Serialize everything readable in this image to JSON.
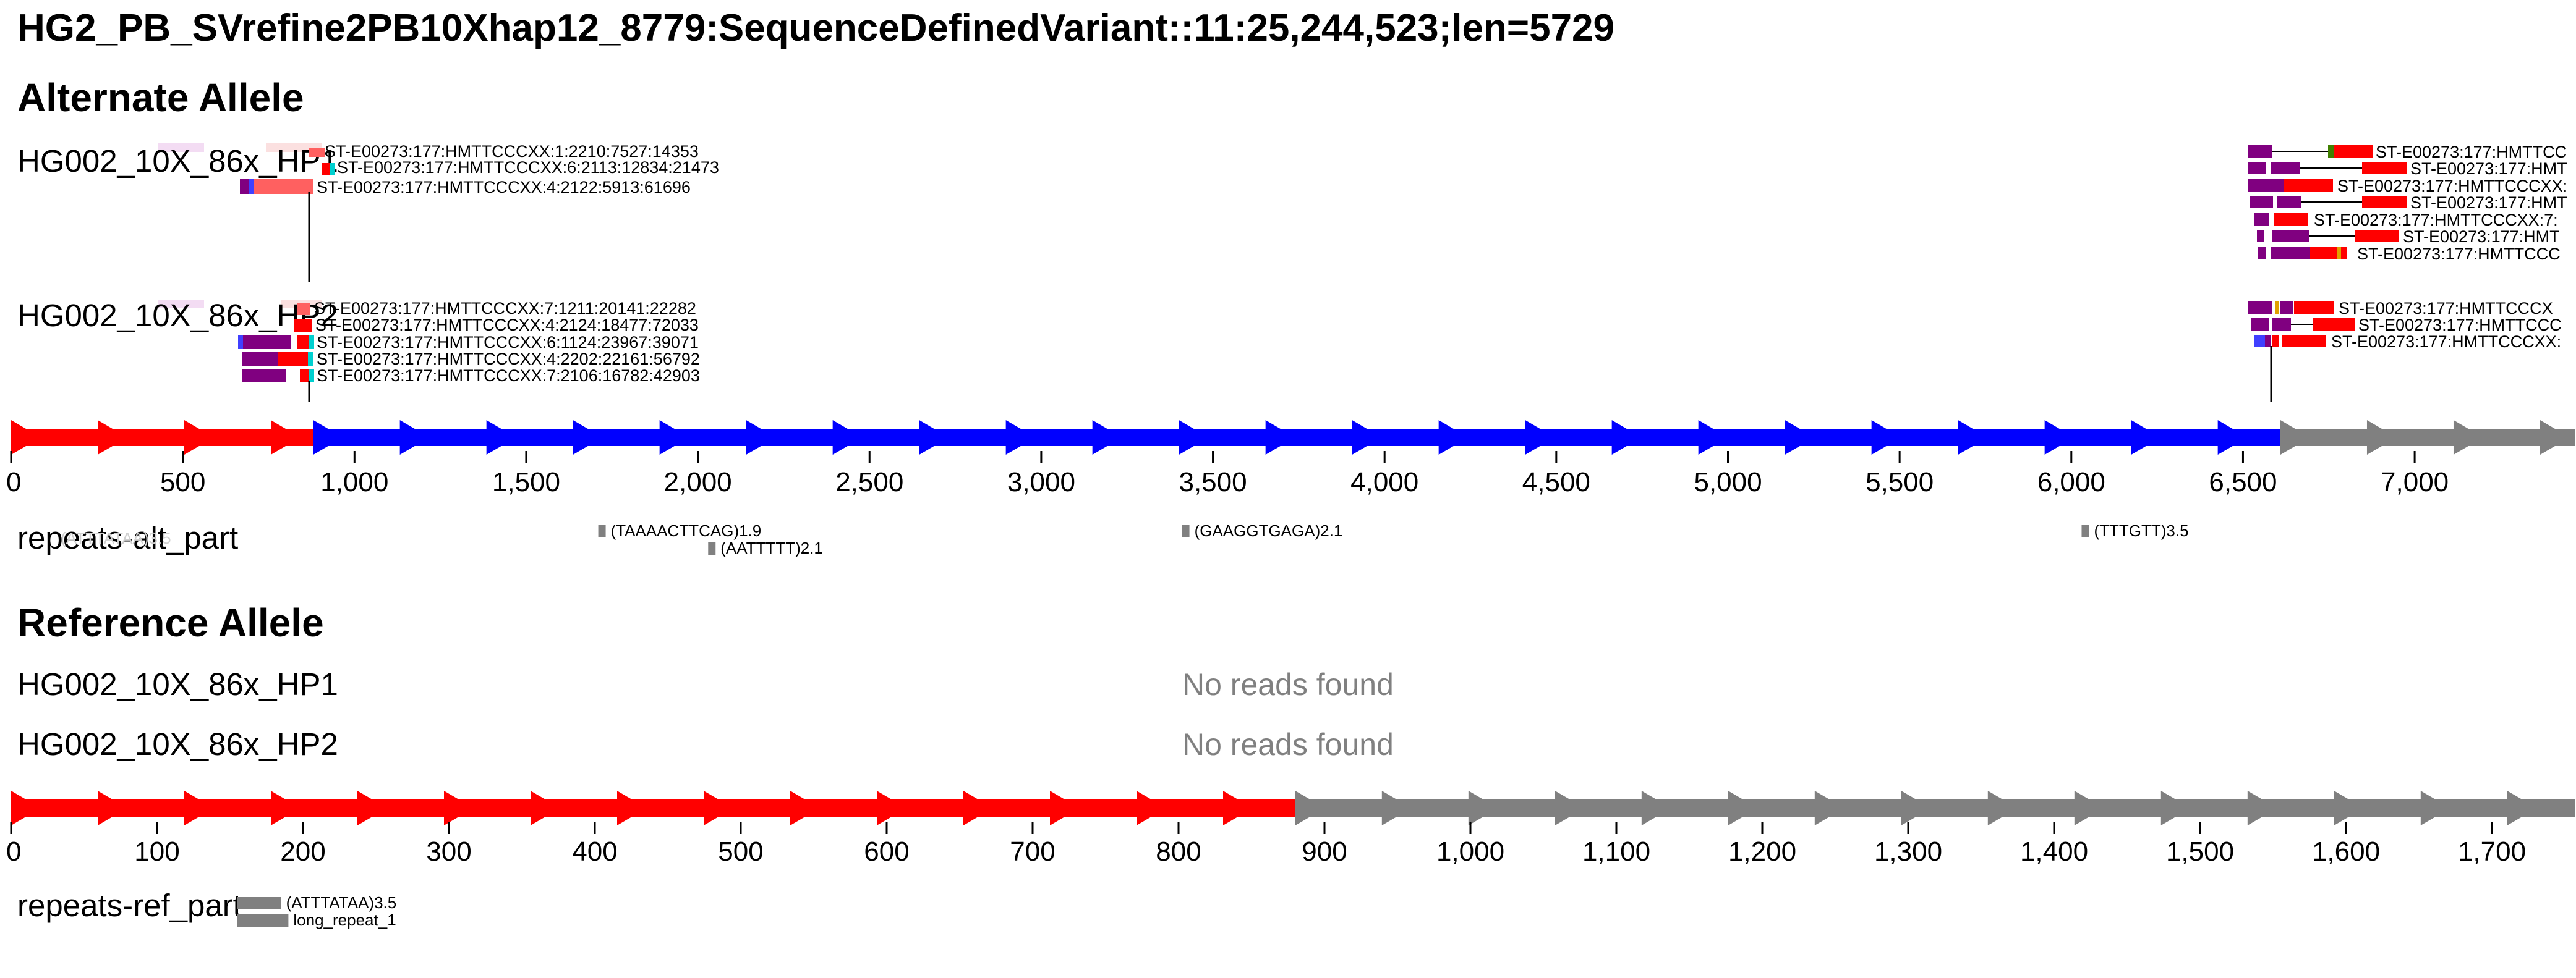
{
  "title": "HG2_PB_SVrefine2PB10Xhap12_8779:SequenceDefinedVariant::11:25,244,523;len=5729",
  "colors": {
    "red": "#ff0000",
    "blue": "#0000ff",
    "gray": "#808080",
    "purple": "#800080",
    "cyan": "#00d0d0",
    "pink": "#e8b0e8",
    "salmon": "#ff6060",
    "axis": "#000000"
  },
  "alt": {
    "heading": "Alternate Allele",
    "samples": [
      {
        "label": "HG002_10X_86x_HP1",
        "left_reads": [
          "ST-E00273:177:HMTTCCCXX:1:2210:7527:14353",
          "ST-E00273:177:HMTTCCCXX:6:2113:12834:21473",
          "ST-E00273:177:HMTTCCCXX:4:2122:5913:61696"
        ],
        "right_reads": [
          "ST-E00273:177:HMTTCC",
          "ST-E00273:177:HMT",
          "ST-E00273:177:HMTTCCCXX:",
          "ST-E00273:177:HMT",
          "ST-E00273:177:HMTTCCCXX:7:",
          "ST-E00273:177:HMT",
          "ST-E00273:177:HMTTCCC"
        ]
      },
      {
        "label": "HG002_10X_86x_HP2",
        "left_reads": [
          "ST-E00273:177:HMTTCCCXX:7:1211:20141:22282",
          "ST-E00273:177:HMTTCCCXX:4:2124:18477:72033",
          "ST-E00273:177:HMTTCCCXX:6:1124:23967:39071",
          "ST-E00273:177:HMTTCCCXX:4:2202:22161:56792",
          "ST-E00273:177:HMTTCCCXX:7:2106:16782:42903"
        ],
        "right_reads": [
          "ST-E00273:177:HMTTCCCX",
          "ST-E00273:177:HMTTCCC",
          "ST-E00273:177:HMTTCCCXX:"
        ]
      }
    ],
    "segments": [
      {
        "color": "red",
        "start": 0,
        "end": 880
      },
      {
        "color": "blue",
        "start": 880,
        "end": 6609
      },
      {
        "color": "gray",
        "start": 6609,
        "end": 7480
      }
    ],
    "ticks": [
      0,
      500,
      1000,
      1500,
      2000,
      2500,
      3000,
      3500,
      4000,
      4500,
      5000,
      5500,
      6000,
      6500,
      7000
    ],
    "tick_labels": [
      "0",
      "500",
      "1,000",
      "1,500",
      "2,000",
      "2,500",
      "3,000",
      "3,500",
      "4,000",
      "4,500",
      "5,000",
      "5,500",
      "6,000",
      "6,500",
      "7,000"
    ],
    "repeats_label": "repeats-alt_part",
    "repeats": [
      {
        "label": "(TAAAACTTCAG)1.9",
        "pos": 1710
      },
      {
        "label": "(AATTTTT)2.1",
        "pos": 2030
      },
      {
        "label": "(GAAGGTGAGA)2.1",
        "pos": 3410
      },
      {
        "label": "(TTTGTT)3.5",
        "pos": 6030
      }
    ]
  },
  "ref": {
    "heading": "Reference Allele",
    "samples": [
      {
        "label": "HG002_10X_86x_HP1",
        "status": "No reads found"
      },
      {
        "label": "HG002_10X_86x_HP2",
        "status": "No reads found"
      }
    ],
    "segments": [
      {
        "color": "red",
        "start": 0,
        "end": 880
      },
      {
        "color": "gray",
        "start": 880,
        "end": 1760
      }
    ],
    "ticks": [
      0,
      100,
      200,
      300,
      400,
      500,
      600,
      700,
      800,
      900,
      1000,
      1100,
      1200,
      1300,
      1400,
      1500,
      1600,
      1700
    ],
    "tick_labels": [
      "0",
      "100",
      "200",
      "300",
      "400",
      "500",
      "600",
      "700",
      "800",
      "900",
      "1,000",
      "1,100",
      "1,200",
      "1,300",
      "1,400",
      "1,500",
      "1,600",
      "1,700"
    ],
    "repeats_label": "repeats-ref_part",
    "repeats": [
      {
        "label": "(ATTTATAA)3.5",
        "start": 155,
        "end": 185
      },
      {
        "label": "long_repeat_1",
        "start": 155,
        "end": 190
      }
    ]
  }
}
